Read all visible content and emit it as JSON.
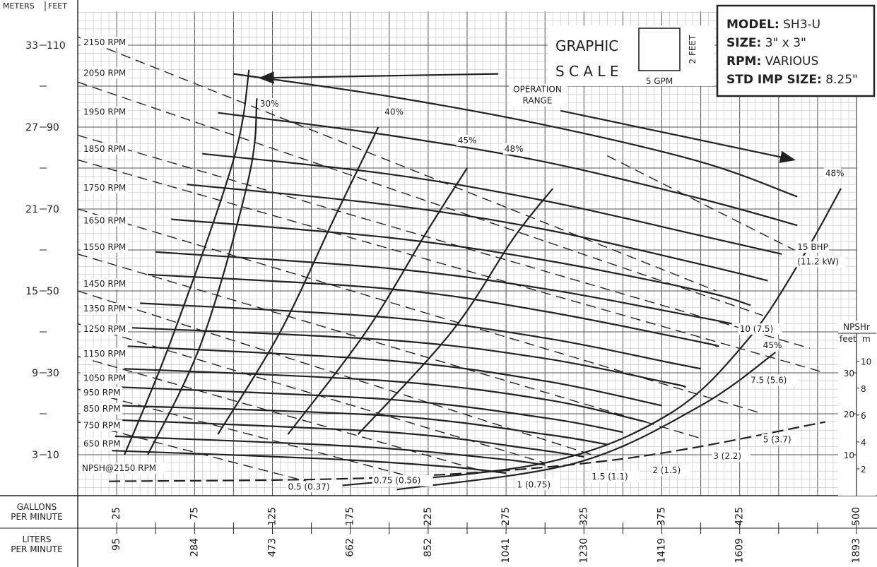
{
  "chart_data": {
    "type": "line",
    "title": "",
    "model_box": [
      {
        "key": "MODEL:",
        "value": "SH3-U"
      },
      {
        "key": "SIZE:",
        "value": "3\" x 3\""
      },
      {
        "key": "RPM:",
        "value": "VARIOUS"
      },
      {
        "key": "STD IMP SIZE:",
        "value": "8.25\""
      }
    ],
    "graphic_scale": {
      "line1": "GRAPHIC",
      "line2": "S C A L E",
      "x_unit": "5 GPM",
      "y_unit": "2 FEET"
    },
    "y_axis": {
      "meters_label": "METERS",
      "feet_label": "FEET",
      "ticks": [
        {
          "m": "33",
          "ft": 110
        },
        {
          "m": "27",
          "ft": 90
        },
        {
          "m": "21",
          "ft": 70
        },
        {
          "m": "15",
          "ft": 50
        },
        {
          "m": "9",
          "ft": 30
        },
        {
          "m": "3",
          "ft": 10
        }
      ],
      "range_ft": [
        0,
        122
      ]
    },
    "x_axis": {
      "gpm_label": [
        "GALLONS",
        "PER MINUTE"
      ],
      "lpm_label": [
        "LITERS",
        "PER MINUTE"
      ],
      "gpm_ticks": [
        25,
        75,
        125,
        175,
        225,
        275,
        325,
        375,
        425,
        500
      ],
      "lpm_ticks": [
        95,
        284,
        473,
        662,
        852,
        1041,
        1230,
        1419,
        1609,
        1893
      ],
      "range_gpm": [
        0,
        500
      ]
    },
    "rpm_labels": [
      "2150 RPM",
      "2050 RPM",
      "1950 RPM",
      "1850 RPM",
      "1750 RPM",
      "1650 RPM",
      "1550 RPM",
      "1450 RPM",
      "1350 RPM",
      "1250 RPM",
      "1150 RPM",
      "1050 RPM",
      "950 RPM",
      "850 RPM",
      "750 RPM",
      "650 RPM"
    ],
    "efficiency_labels": [
      "30%",
      "40%",
      "45%",
      "48%",
      "48%",
      "45%"
    ],
    "bhp_labels": [
      "15 BHP",
      "(11.2 kW)",
      "10 (7.5)",
      "7.5 (5.6)",
      "5 (3.7)",
      "3 (2.2)",
      "2 (1.5)",
      "1.5 (1.1)",
      "1 (0.75)",
      "0.75 (0.56)",
      "0.5 (0.37)"
    ],
    "operation_range": [
      "OPERATION",
      "RANGE"
    ],
    "npsh_curve_label": "NPSH@2150 RPM",
    "npshr_scale": {
      "title": "NPSHr",
      "feet_label": "feet",
      "m_label": "m",
      "feet_ticks": [
        10,
        20,
        30
      ],
      "m_ticks": [
        2,
        4,
        6,
        8,
        10
      ]
    },
    "series": [
      {
        "name": "2150 RPM",
        "x": [
          100,
          200,
          300,
          400,
          462
        ],
        "y": [
          103,
          97.5,
          90.5,
          81.5,
          73
        ]
      },
      {
        "name": "2050 RPM",
        "x": [
          90,
          200,
          300,
          400,
          462
        ],
        "y": [
          93.5,
          88,
          81.5,
          72.5,
          66
        ]
      },
      {
        "name": "1950 RPM",
        "x": [
          80,
          200,
          300,
          400,
          452
        ],
        "y": [
          83.5,
          78.5,
          72,
          63.5,
          59
        ]
      },
      {
        "name": "1850 RPM",
        "x": [
          70,
          200,
          300,
          400,
          443
        ],
        "y": [
          76,
          71,
          65,
          56.5,
          52.5
        ]
      },
      {
        "name": "1750 RPM",
        "x": [
          60,
          200,
          300,
          400,
          432
        ],
        "y": [
          67.5,
          63,
          57.5,
          50,
          46.5
        ]
      },
      {
        "name": "1650 RPM",
        "x": [
          50,
          200,
          300,
          400,
          420
        ],
        "y": [
          59.5,
          55.5,
          50.5,
          43.5,
          42
        ]
      },
      {
        "name": "1550 RPM",
        "x": [
          45,
          200,
          300,
          400,
          410
        ],
        "y": [
          54,
          50.5,
          45,
          37.5,
          36.5
        ]
      },
      {
        "name": "1450 RPM",
        "x": [
          40,
          200,
          300,
          380,
          400
        ],
        "y": [
          47,
          43.5,
          38.5,
          32.5,
          31
        ]
      },
      {
        "name": "1350 RPM",
        "x": [
          35,
          200,
          300,
          380,
          390
        ],
        "y": [
          41,
          38,
          33.5,
          27.5,
          26.5
        ]
      },
      {
        "name": "1250 RPM",
        "x": [
          32,
          200,
          300,
          375
        ],
        "y": [
          36.5,
          33,
          28,
          22
        ]
      },
      {
        "name": "1150 RPM",
        "x": [
          30,
          200,
          300,
          365
        ],
        "y": [
          31,
          28,
          23.5,
          18
        ]
      },
      {
        "name": "1050 RPM",
        "x": [
          28,
          200,
          300,
          350
        ],
        "y": [
          26.5,
          23.5,
          19,
          15.5
        ]
      },
      {
        "name": "950 RPM",
        "x": [
          26,
          200,
          300,
          340
        ],
        "y": [
          22,
          19.5,
          15,
          12.5
        ]
      },
      {
        "name": "850 RPM",
        "x": [
          25,
          200,
          290,
          325
        ],
        "y": [
          18.5,
          15.5,
          11.5,
          9.5
        ]
      },
      {
        "name": "750 RPM",
        "x": [
          24,
          180,
          270,
          300
        ],
        "y": [
          14.5,
          12,
          9,
          7.5
        ]
      },
      {
        "name": "650 RPM",
        "x": [
          22,
          160,
          240,
          275
        ],
        "y": [
          11,
          9,
          7,
          5.5
        ]
      },
      {
        "name": "30% eff",
        "x": [
          30,
          60,
          100,
          110
        ],
        "y": [
          10,
          38,
          82,
          104
        ]
      },
      {
        "name": "30% eff b",
        "x": [
          45,
          80,
          110,
          115
        ],
        "y": [
          10,
          38,
          78,
          97
        ]
      },
      {
        "name": "40% eff",
        "x": [
          90,
          130,
          165,
          193
        ],
        "y": [
          15,
          40,
          68,
          90
        ]
      },
      {
        "name": "45% eff",
        "x": [
          135,
          185,
          225,
          250
        ],
        "y": [
          15,
          40,
          65,
          80
        ]
      },
      {
        "name": "48% eff",
        "x": [
          180,
          240,
          280,
          305
        ],
        "y": [
          15,
          40,
          63,
          75
        ]
      },
      {
        "name": "48% eff right",
        "x": [
          170,
          300,
          380,
          430,
          465,
          490
        ],
        "y": [
          2.5,
          8,
          20,
          38,
          58,
          75
        ]
      },
      {
        "name": "45% eff right",
        "x": [
          205,
          320,
          400,
          448
        ],
        "y": [
          1.5,
          8,
          22,
          35
        ]
      },
      {
        "name": "NPSH@2150 RPM",
        "x": [
          20,
          200,
          350,
          480
        ],
        "y": [
          3.5,
          4.5,
          9,
          18
        ]
      }
    ]
  }
}
